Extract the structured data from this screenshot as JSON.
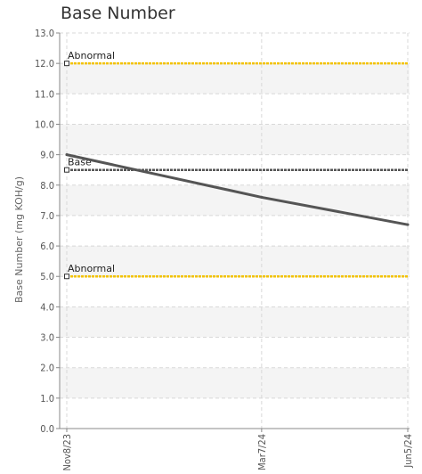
{
  "title": "Base Number",
  "chart_data": {
    "type": "line",
    "title": "Base Number",
    "xlabel": "",
    "ylabel": "Base Number (mg KOH/g)",
    "categories": [
      "Nov8/23",
      "Mar7/24",
      "Jun5/24"
    ],
    "x_positions": [
      0,
      120,
      210
    ],
    "series": [
      {
        "values": [
          9.0,
          7.6,
          6.7
        ],
        "color": "#555555"
      }
    ],
    "reference_lines": [
      {
        "label": "Abnormal",
        "value": 12.0,
        "color": "#f2c200"
      },
      {
        "label": "Base",
        "value": 8.5,
        "color": "#555555"
      },
      {
        "label": "Abnormal",
        "value": 5.0,
        "color": "#f2c200"
      }
    ],
    "ylim": [
      0,
      13
    ],
    "yticks": [
      0,
      1,
      2,
      3,
      4,
      5,
      6,
      7,
      8,
      9,
      10,
      11,
      12,
      13
    ],
    "ytick_labels": [
      "0.0",
      "1.0",
      "2.0",
      "3.0",
      "4.0",
      "5.0",
      "6.0",
      "7.0",
      "8.0",
      "9.0",
      "10.0",
      "11.0",
      "12.0",
      "13.0"
    ],
    "grid": true,
    "band_color": "#f4f4f4"
  }
}
